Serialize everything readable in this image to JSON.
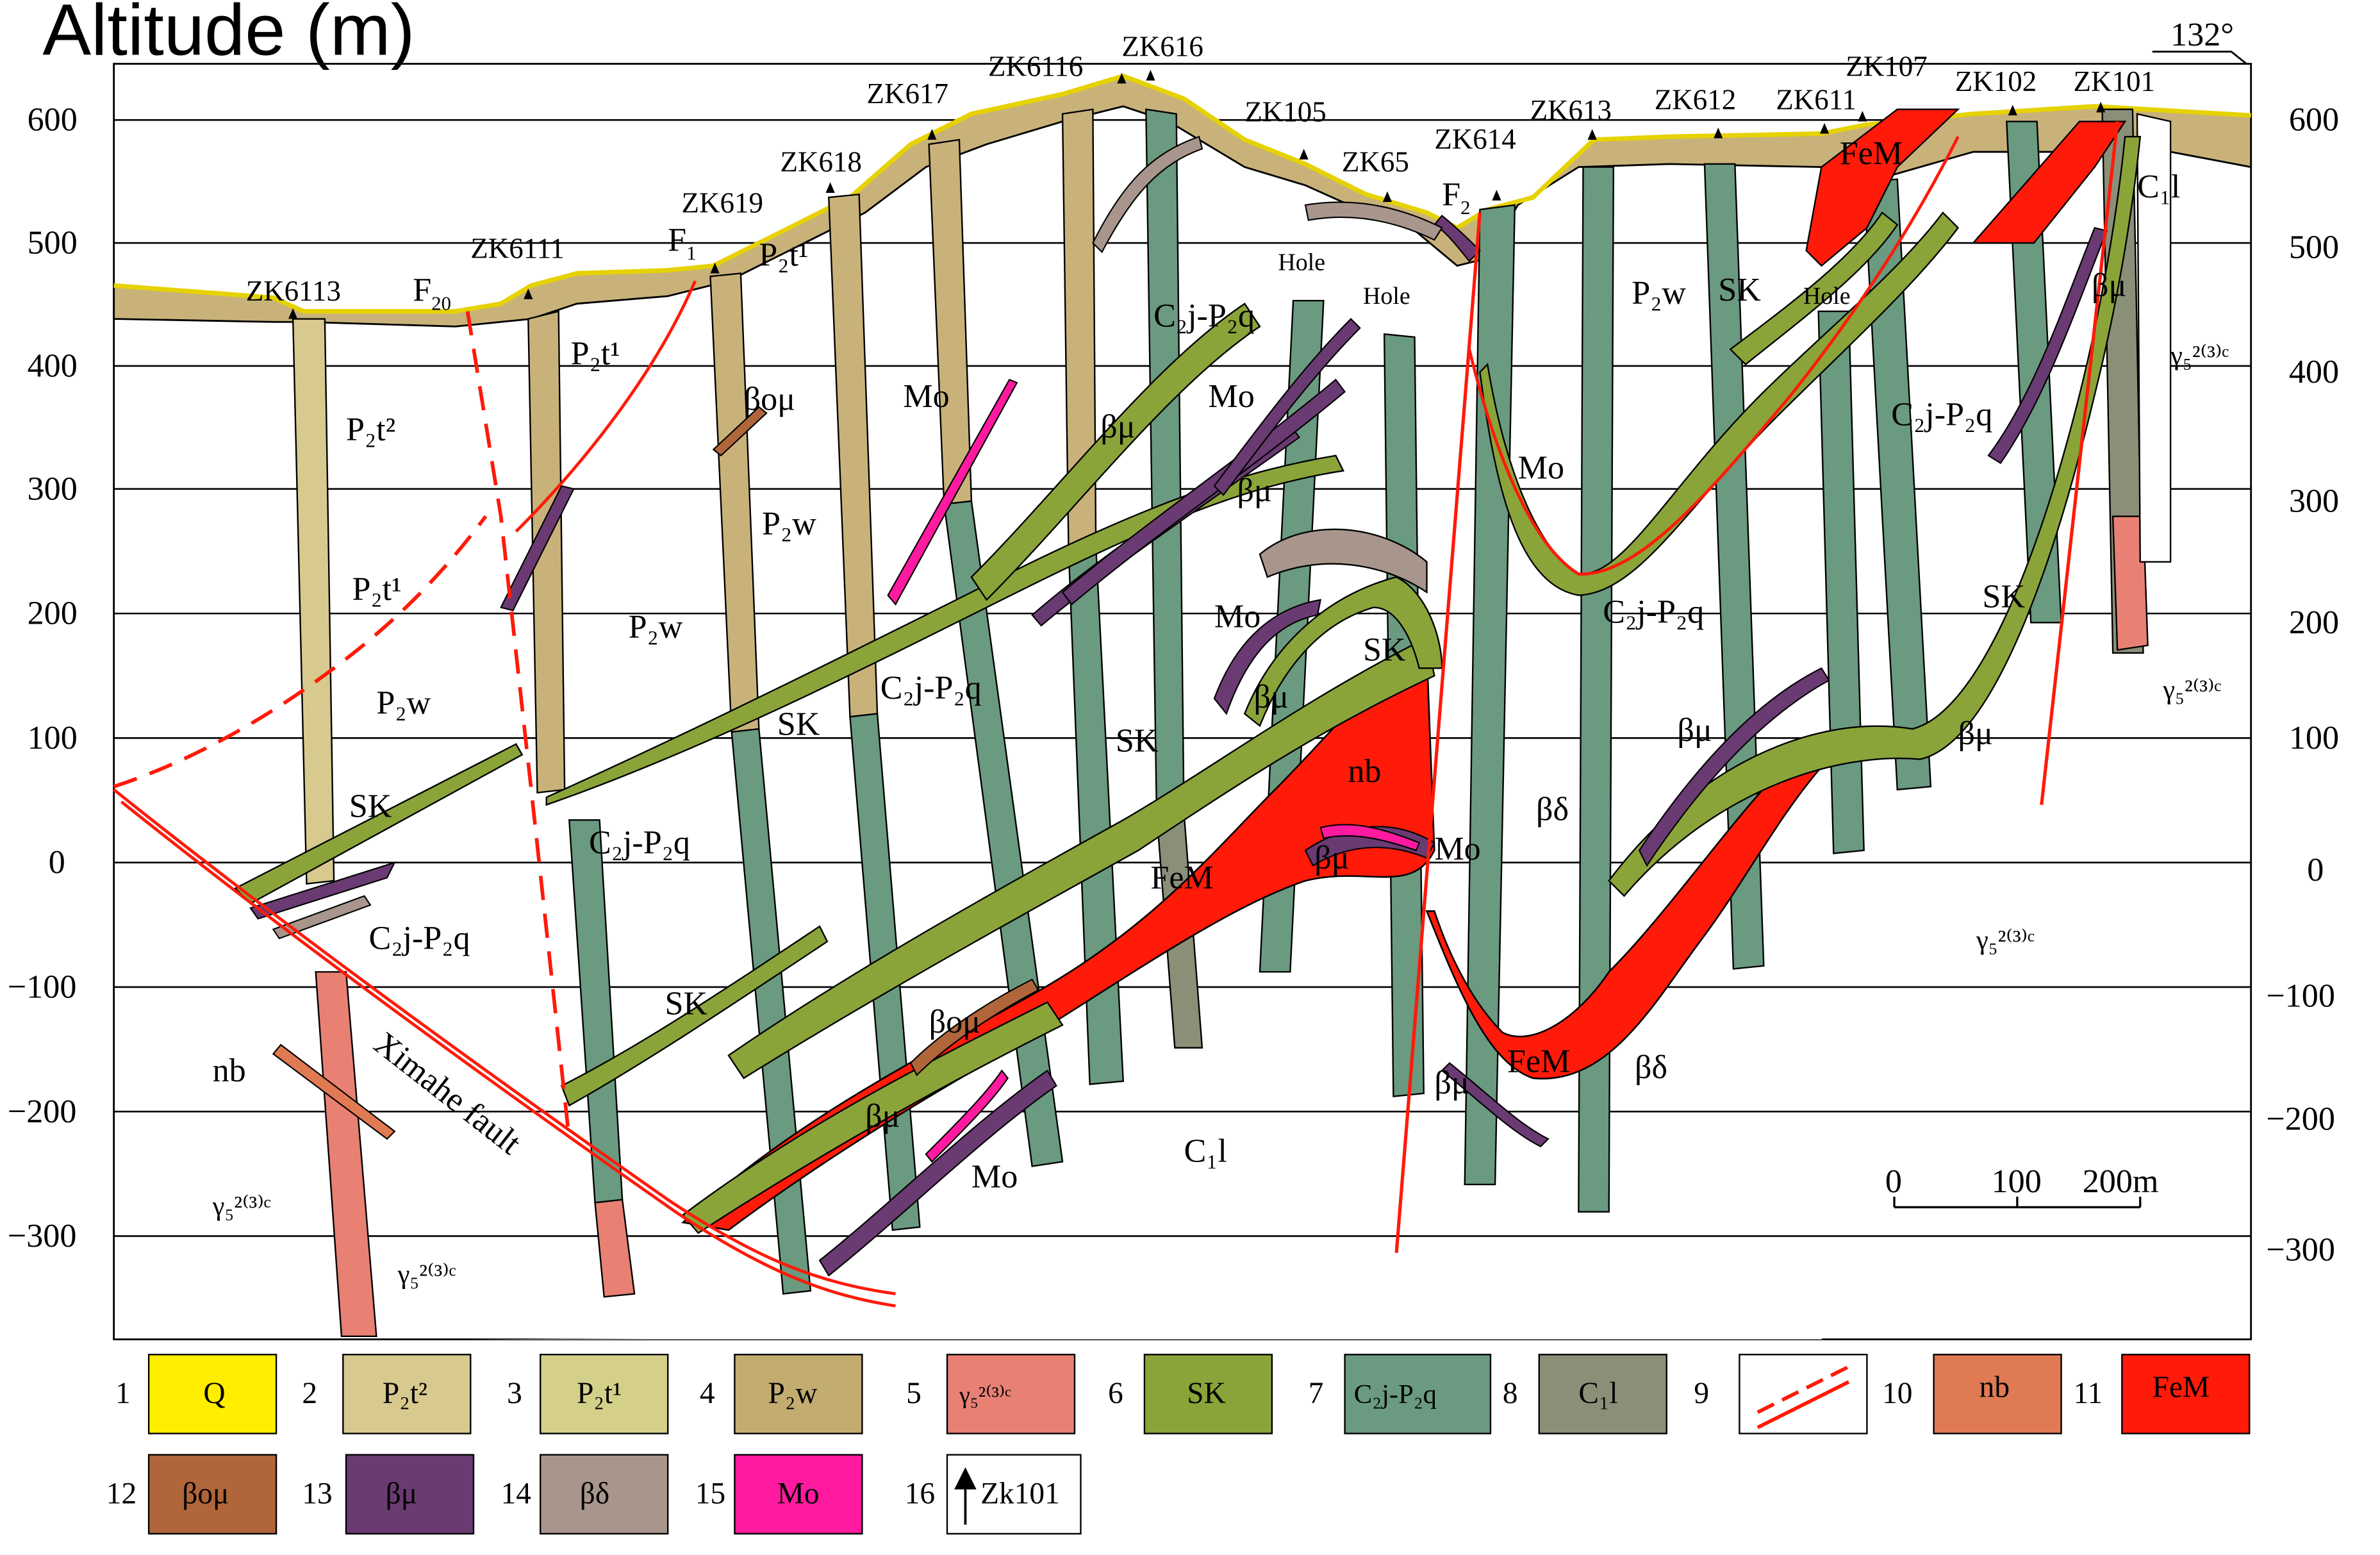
{
  "axis": {
    "title": "Altitude (m)",
    "ticks": [
      "600",
      "500",
      "400",
      "300",
      "200",
      "100",
      "0",
      "−100",
      "−200",
      "−300"
    ],
    "tick_values": [
      600,
      500,
      400,
      300,
      200,
      100,
      0,
      -100,
      -200,
      -300
    ]
  },
  "orientation": {
    "label": "132°"
  },
  "boreholes": [
    "ZK6113",
    "ZK6111",
    "ZK619",
    "ZK618",
    "ZK617",
    "ZK6116",
    "ZK616",
    "ZK105",
    "ZK65",
    "ZK614",
    "ZK613",
    "ZK612",
    "ZK611",
    "ZK107",
    "ZK102",
    "ZK101"
  ],
  "faults": {
    "f20": "F",
    "f20_sub": "20",
    "f1": "F",
    "f1_sub": "1",
    "f2": "F",
    "f2_sub": "2",
    "ximahe": "Ximahe fault"
  },
  "section_labels": {
    "p2t2": "P₂t²",
    "p2t1": "P₂t¹",
    "p2w": "P₂w",
    "sk": "SK",
    "c2j_p2q": "C₂j-P₂q",
    "c1l": "C₁l",
    "mo": "Mo",
    "feM": "FeM",
    "nb": "nb",
    "beta_mu": "βμ",
    "beta_o_mu": "βoμ",
    "beta_delta": "βδ",
    "gamma5": "γ₅²⁽³⁾ᶜ",
    "hole": "Hole"
  },
  "scale_bar": {
    "labels": [
      "0",
      "100",
      "200m"
    ]
  },
  "legend": [
    {
      "num": "1",
      "label": "Q",
      "color": "#ffee00"
    },
    {
      "num": "2",
      "label": "P₂t²",
      "color": "#d8c98e"
    },
    {
      "num": "3",
      "label": "P₂t¹",
      "color": "#d4d08a"
    },
    {
      "num": "4",
      "label": "P₂w",
      "color": "#c2ac70"
    },
    {
      "num": "5",
      "label": "γ₅²⁽³⁾ᶜ",
      "color": "#e88074"
    },
    {
      "num": "6",
      "label": "SK",
      "color": "#8aa43a"
    },
    {
      "num": "7",
      "label": "C₂j-P₂q",
      "color": "#6a9a80"
    },
    {
      "num": "8",
      "label": "C₁l",
      "color": "#8a9078"
    },
    {
      "num": "9",
      "label": "",
      "color": "#ffffff"
    },
    {
      "num": "10",
      "label": "nb",
      "color": "#e07a52"
    },
    {
      "num": "11",
      "label": "FeM",
      "color": "#ff1a0a"
    },
    {
      "num": "12",
      "label": "βoμ",
      "color": "#b0663a"
    },
    {
      "num": "13",
      "label": "βμ",
      "color": "#6a3a72"
    },
    {
      "num": "14",
      "label": "βδ",
      "color": "#a8968c"
    },
    {
      "num": "15",
      "label": "Mo",
      "color": "#ff1aa0"
    },
    {
      "num": "16",
      "label": "Zk101",
      "color": "#ffffff"
    }
  ]
}
